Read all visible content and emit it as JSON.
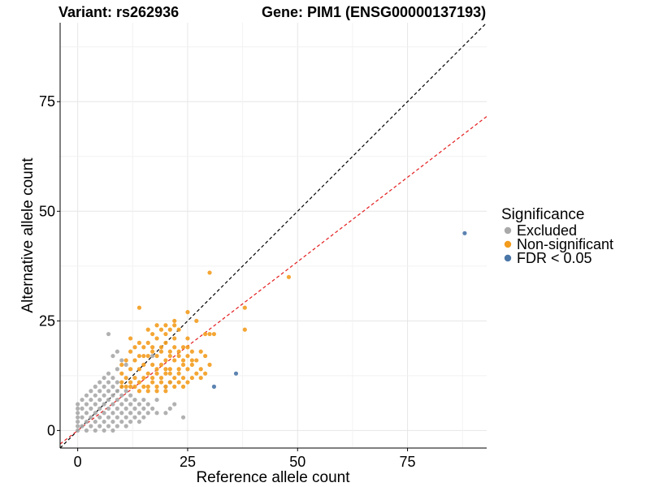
{
  "chart_data": {
    "type": "scatter",
    "title_left": "Variant: rs262936",
    "title_right": "Gene: PIM1 (ENSG00000137193)",
    "xlabel": "Reference allele count",
    "ylabel": "Alternative allele count",
    "xlim": [
      -4,
      93
    ],
    "ylim": [
      -4,
      93
    ],
    "xticks": [
      0,
      25,
      50,
      75
    ],
    "yticks": [
      0,
      25,
      50,
      75
    ],
    "grid": true,
    "legend": {
      "title": "Significance",
      "placement": "right",
      "entries": [
        {
          "label": "Excluded",
          "color": "#A9A9A9"
        },
        {
          "label": "Non-significant",
          "color": "#F39C1E"
        },
        {
          "label": "FDR < 0.05",
          "color": "#4A76A8"
        }
      ]
    },
    "reference_lines": [
      {
        "name": "identity",
        "slope": 1.0,
        "intercept": 0,
        "color": "#000000",
        "style": "dashed"
      },
      {
        "name": "fit",
        "slope": 0.77,
        "intercept": 0,
        "color": "#E41A1C",
        "style": "dashed"
      }
    ],
    "series": [
      {
        "name": "FDR < 0.05",
        "color": "#4A76A8",
        "points": [
          [
            88,
            45
          ],
          [
            36,
            13
          ],
          [
            31,
            10
          ]
        ]
      },
      {
        "name": "Non-significant",
        "color": "#F39C1E",
        "points": [
          [
            30,
            36
          ],
          [
            48,
            35
          ],
          [
            14,
            28
          ],
          [
            38,
            28
          ],
          [
            38,
            23
          ],
          [
            25,
            27
          ],
          [
            27,
            25
          ],
          [
            29,
            22
          ],
          [
            30,
            22
          ],
          [
            31,
            22
          ],
          [
            22,
            25
          ],
          [
            22,
            24
          ],
          [
            20,
            24
          ],
          [
            18,
            24
          ],
          [
            16,
            23
          ],
          [
            19,
            23
          ],
          [
            21,
            23
          ],
          [
            23,
            23
          ],
          [
            17,
            22
          ],
          [
            20,
            22
          ],
          [
            22,
            21
          ],
          [
            25,
            21
          ],
          [
            12,
            21
          ],
          [
            14,
            20
          ],
          [
            16,
            20
          ],
          [
            18,
            21
          ],
          [
            20,
            20
          ],
          [
            22,
            19
          ],
          [
            24,
            19
          ],
          [
            26,
            18
          ],
          [
            28,
            18
          ],
          [
            13,
            19
          ],
          [
            15,
            19
          ],
          [
            17,
            19
          ],
          [
            19,
            18
          ],
          [
            21,
            18
          ],
          [
            23,
            17
          ],
          [
            25,
            17
          ],
          [
            27,
            16
          ],
          [
            29,
            17
          ],
          [
            12,
            18
          ],
          [
            14,
            17
          ],
          [
            16,
            17
          ],
          [
            18,
            17
          ],
          [
            20,
            16
          ],
          [
            22,
            16
          ],
          [
            24,
            15
          ],
          [
            26,
            15
          ],
          [
            28,
            14
          ],
          [
            30,
            15
          ],
          [
            11,
            16
          ],
          [
            13,
            16
          ],
          [
            15,
            15
          ],
          [
            17,
            15
          ],
          [
            19,
            15
          ],
          [
            21,
            14
          ],
          [
            23,
            14
          ],
          [
            25,
            14
          ],
          [
            27,
            13
          ],
          [
            29,
            13
          ],
          [
            10,
            15
          ],
          [
            12,
            14
          ],
          [
            14,
            14
          ],
          [
            16,
            13
          ],
          [
            18,
            13
          ],
          [
            20,
            13
          ],
          [
            22,
            12
          ],
          [
            24,
            12
          ],
          [
            26,
            12
          ],
          [
            28,
            12
          ],
          [
            10,
            13
          ],
          [
            11,
            12
          ],
          [
            13,
            12
          ],
          [
            15,
            12
          ],
          [
            17,
            11
          ],
          [
            19,
            11
          ],
          [
            21,
            11
          ],
          [
            23,
            11
          ],
          [
            25,
            11
          ],
          [
            10,
            11
          ],
          [
            12,
            11
          ],
          [
            14,
            11
          ],
          [
            16,
            10
          ],
          [
            18,
            10
          ],
          [
            20,
            10
          ],
          [
            22,
            10
          ],
          [
            24,
            10
          ],
          [
            11,
            10
          ],
          [
            13,
            10
          ],
          [
            15,
            10
          ],
          [
            10,
            10
          ],
          [
            12,
            10
          ],
          [
            14,
            9
          ],
          [
            16,
            9
          ],
          [
            18,
            9
          ],
          [
            20,
            9
          ],
          [
            17,
            12
          ],
          [
            19,
            12
          ],
          [
            21,
            13
          ],
          [
            23,
            13
          ],
          [
            15,
            17
          ],
          [
            17,
            18
          ],
          [
            19,
            19
          ],
          [
            21,
            17
          ],
          [
            23,
            18
          ],
          [
            25,
            19
          ],
          [
            26,
            16
          ],
          [
            24,
            16
          ],
          [
            20,
            14
          ],
          [
            18,
            14
          ]
        ]
      },
      {
        "name": "Excluded",
        "color": "#A9A9A9",
        "points": [
          [
            7,
            22
          ],
          [
            17,
            17
          ],
          [
            20,
            10
          ],
          [
            21,
            11
          ],
          [
            24,
            3
          ],
          [
            22,
            6
          ],
          [
            21,
            5
          ],
          [
            20,
            4
          ],
          [
            18,
            7
          ],
          [
            9,
            18
          ],
          [
            8,
            17
          ],
          [
            10,
            16
          ],
          [
            11,
            15
          ],
          [
            9,
            14
          ],
          [
            7,
            13
          ],
          [
            6,
            12
          ],
          [
            8,
            12
          ],
          [
            5,
            11
          ],
          [
            7,
            11
          ],
          [
            9,
            11
          ],
          [
            4,
            10
          ],
          [
            6,
            10
          ],
          [
            8,
            10
          ],
          [
            3,
            9
          ],
          [
            5,
            9
          ],
          [
            7,
            9
          ],
          [
            9,
            9
          ],
          [
            11,
            9
          ],
          [
            2,
            8
          ],
          [
            4,
            8
          ],
          [
            6,
            8
          ],
          [
            8,
            8
          ],
          [
            10,
            8
          ],
          [
            12,
            8
          ],
          [
            1,
            7
          ],
          [
            3,
            7
          ],
          [
            5,
            7
          ],
          [
            7,
            7
          ],
          [
            9,
            7
          ],
          [
            11,
            7
          ],
          [
            13,
            7
          ],
          [
            15,
            7
          ],
          [
            0,
            6
          ],
          [
            2,
            6
          ],
          [
            4,
            6
          ],
          [
            6,
            6
          ],
          [
            8,
            6
          ],
          [
            10,
            6
          ],
          [
            12,
            6
          ],
          [
            14,
            6
          ],
          [
            16,
            6
          ],
          [
            0,
            5
          ],
          [
            1,
            5
          ],
          [
            3,
            5
          ],
          [
            5,
            5
          ],
          [
            7,
            5
          ],
          [
            9,
            5
          ],
          [
            11,
            5
          ],
          [
            13,
            5
          ],
          [
            15,
            5
          ],
          [
            17,
            5
          ],
          [
            0,
            4
          ],
          [
            2,
            4
          ],
          [
            4,
            4
          ],
          [
            6,
            4
          ],
          [
            8,
            4
          ],
          [
            10,
            4
          ],
          [
            12,
            4
          ],
          [
            14,
            4
          ],
          [
            16,
            4
          ],
          [
            18,
            4
          ],
          [
            0,
            3
          ],
          [
            1,
            3
          ],
          [
            3,
            3
          ],
          [
            5,
            3
          ],
          [
            7,
            3
          ],
          [
            9,
            3
          ],
          [
            11,
            3
          ],
          [
            13,
            3
          ],
          [
            15,
            3
          ],
          [
            0,
            2
          ],
          [
            2,
            2
          ],
          [
            4,
            2
          ],
          [
            6,
            2
          ],
          [
            8,
            2
          ],
          [
            10,
            2
          ],
          [
            12,
            2
          ],
          [
            14,
            2
          ],
          [
            0,
            1
          ],
          [
            1,
            1
          ],
          [
            3,
            1
          ],
          [
            5,
            1
          ],
          [
            7,
            1
          ],
          [
            9,
            1
          ],
          [
            11,
            1
          ],
          [
            0,
            0
          ],
          [
            2,
            0
          ],
          [
            4,
            0
          ],
          [
            6,
            0
          ],
          [
            8,
            0
          ]
        ]
      }
    ]
  }
}
